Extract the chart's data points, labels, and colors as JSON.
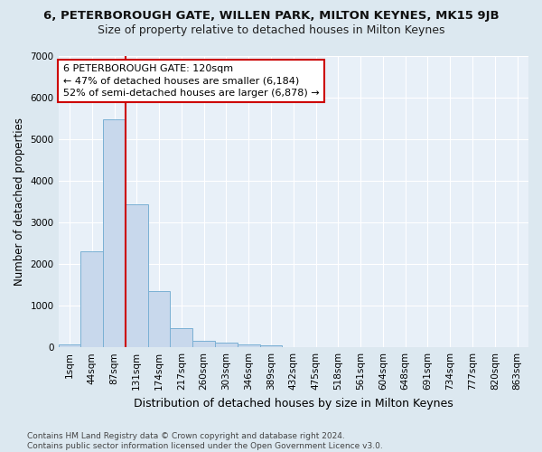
{
  "title_main": "6, PETERBOROUGH GATE, WILLEN PARK, MILTON KEYNES, MK15 9JB",
  "title_sub": "Size of property relative to detached houses in Milton Keynes",
  "xlabel": "Distribution of detached houses by size in Milton Keynes",
  "ylabel": "Number of detached properties",
  "footnote": "Contains HM Land Registry data © Crown copyright and database right 2024.\nContains public sector information licensed under the Open Government Licence v3.0.",
  "bar_labels": [
    "1sqm",
    "44sqm",
    "87sqm",
    "131sqm",
    "174sqm",
    "217sqm",
    "260sqm",
    "303sqm",
    "346sqm",
    "389sqm",
    "432sqm",
    "475sqm",
    "518sqm",
    "561sqm",
    "604sqm",
    "648sqm",
    "691sqm",
    "734sqm",
    "777sqm",
    "820sqm",
    "863sqm"
  ],
  "bar_values": [
    75,
    2300,
    5480,
    3430,
    1340,
    460,
    165,
    105,
    65,
    40,
    0,
    0,
    0,
    0,
    0,
    0,
    0,
    0,
    0,
    0,
    0
  ],
  "bar_color": "#c8d8ec",
  "bar_edgecolor": "#7ab0d4",
  "vline_color": "#cc0000",
  "vline_x": 2.5,
  "ylim_max": 7000,
  "yticks": [
    0,
    1000,
    2000,
    3000,
    4000,
    5000,
    6000,
    7000
  ],
  "annotation_text": "6 PETERBOROUGH GATE: 120sqm\n← 47% of detached houses are smaller (6,184)\n52% of semi-detached houses are larger (6,878) →",
  "bg_color": "#dce8f0",
  "plot_bg": "#e8f0f8",
  "grid_color": "#ffffff",
  "title_main_fontsize": 9.5,
  "title_sub_fontsize": 9,
  "tick_fontsize": 7.5,
  "ylabel_fontsize": 8.5,
  "xlabel_fontsize": 9,
  "footnote_fontsize": 6.5,
  "annot_fontsize": 8
}
